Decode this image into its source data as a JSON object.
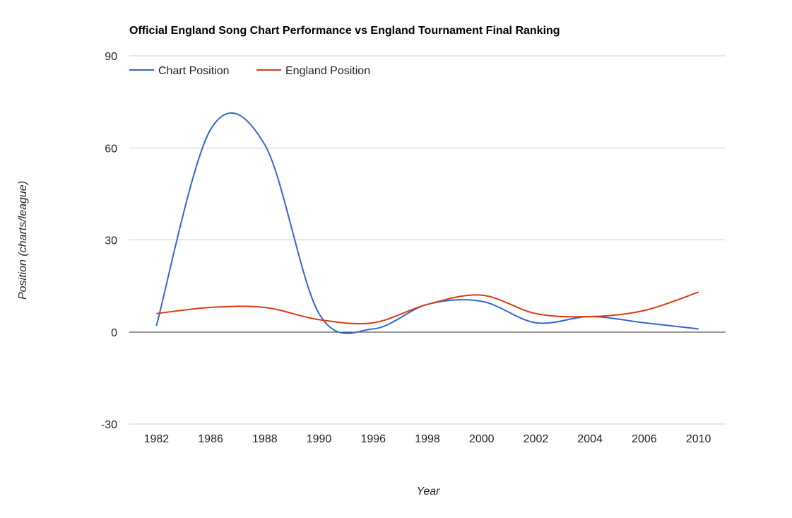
{
  "chart_data": {
    "type": "line",
    "title": "Official England Song Chart Performance vs England Tournament Final Ranking",
    "xlabel": "Year",
    "ylabel": "Position (charts/league)",
    "categories": [
      "1982",
      "1986",
      "1988",
      "1990",
      "1996",
      "1998",
      "2000",
      "2002",
      "2004",
      "2006",
      "2010"
    ],
    "yticks": [
      90,
      60,
      30,
      0,
      -30
    ],
    "ylim": [
      -30,
      90
    ],
    "grid": true,
    "legend_position": "top-left",
    "series": [
      {
        "name": "Chart Position",
        "color": "#3366cc",
        "values": [
          2,
          66,
          61,
          6,
          1,
          9,
          10,
          3,
          5,
          3,
          1
        ]
      },
      {
        "name": "England Position",
        "color": "#dc3912",
        "values": [
          6,
          8,
          8,
          4,
          3,
          9,
          12,
          6,
          5,
          7,
          13
        ]
      }
    ]
  }
}
